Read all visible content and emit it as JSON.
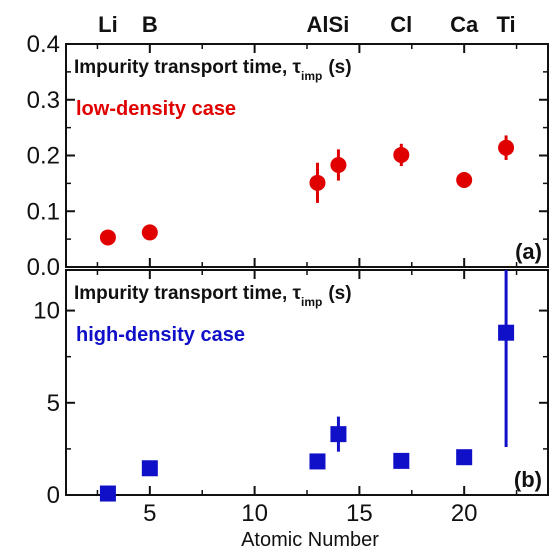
{
  "chart_data": [
    {
      "type": "scatter",
      "panel_label": "(a)",
      "title": "Impurity transport time, τ",
      "title_subscript": "imp",
      "title_unit": "(s)",
      "subtitle": "low-density case",
      "series": [
        {
          "name": "low-density case",
          "color": "#e00000",
          "marker": "circle",
          "x": [
            3,
            5,
            13,
            14,
            17,
            20,
            22
          ],
          "y": [
            0.053,
            0.062,
            0.151,
            0.183,
            0.201,
            0.156,
            0.214
          ],
          "yerr": [
            0,
            0,
            0.036,
            0.028,
            0.02,
            0,
            0.022
          ]
        }
      ],
      "xlim": [
        1,
        24
      ],
      "ylim": [
        0,
        0.4
      ],
      "yticks": [
        "0.0",
        "0.1",
        "0.2",
        "0.3",
        "0.4"
      ],
      "element_labels": [
        {
          "text": "Li",
          "x": 3
        },
        {
          "text": "B",
          "x": 5
        },
        {
          "text": "AlSi",
          "x": 13.5
        },
        {
          "text": "Cl",
          "x": 17
        },
        {
          "text": "Ca",
          "x": 20
        },
        {
          "text": "Ti",
          "x": 22
        }
      ]
    },
    {
      "type": "scatter",
      "panel_label": "(b)",
      "title": "Impurity transport time, τ",
      "title_subscript": "imp",
      "title_unit": "(s)",
      "subtitle": "high-density case",
      "series": [
        {
          "name": "high-density case",
          "color": "#1010c8",
          "marker": "square",
          "x": [
            3,
            5,
            13,
            14,
            17,
            20,
            22
          ],
          "y": [
            0.08,
            1.45,
            1.82,
            3.3,
            1.85,
            2.05,
            8.8
          ],
          "yerr": [
            0,
            0,
            0,
            0.95,
            0,
            0,
            6.2
          ]
        }
      ],
      "xlim": [
        1,
        24
      ],
      "ylim": [
        0,
        12.2
      ],
      "yticks": [
        "0",
        "5",
        "10"
      ],
      "xticks": [
        "5",
        "10",
        "15",
        "20"
      ],
      "xlabel": "Atomic Number"
    }
  ]
}
